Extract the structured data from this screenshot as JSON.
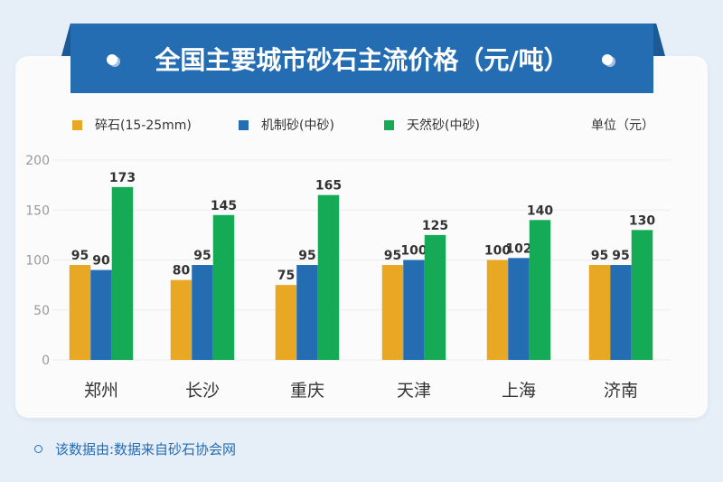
{
  "title": "全国主要城市砂石主流价格（元/吨）",
  "unit_label": "单位（元）",
  "source": "该数据由:数据来自砂石协会网",
  "chart_data": {
    "type": "bar",
    "categories": [
      "郑州",
      "长沙",
      "重庆",
      "天津",
      "上海",
      "济南"
    ],
    "series": [
      {
        "name": "碎石(15-25mm)",
        "color": "#e8a823",
        "values": [
          95,
          80,
          75,
          95,
          100,
          95
        ]
      },
      {
        "name": "机制砂(中砂)",
        "color": "#256db3",
        "values": [
          90,
          95,
          95,
          100,
          102,
          95
        ]
      },
      {
        "name": "天然砂(中砂)",
        "color": "#15ab56",
        "values": [
          173,
          145,
          165,
          125,
          140,
          130
        ]
      }
    ],
    "yticks": [
      0,
      50,
      100,
      150,
      200
    ],
    "ylim": [
      0,
      200
    ],
    "grid": true,
    "legend": "top-left"
  }
}
